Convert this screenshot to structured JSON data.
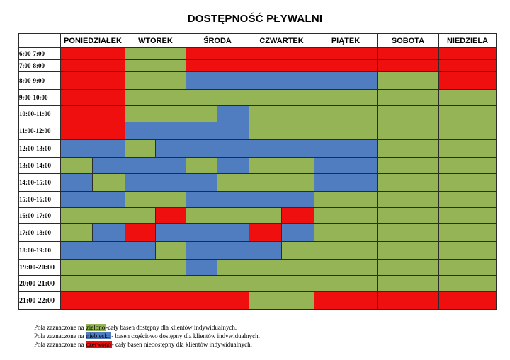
{
  "title": "DOSTĘPNOŚĆ PŁYWALNI",
  "colors": {
    "G": "#94b455",
    "B": "#4f7dbf",
    "R": "#ef0f0f"
  },
  "days": [
    "PONIEDZIAŁEK",
    "WTOREK",
    "ŚRODA",
    "CZWARTEK",
    "PIĄTEK",
    "SOBOTA",
    "NIEDZIELA"
  ],
  "rows": [
    {
      "time": "6:00-7:00",
      "cells": [
        [
          "R"
        ],
        [
          "G"
        ],
        [
          "R"
        ],
        [
          "R"
        ],
        [
          "R"
        ],
        [
          "R"
        ],
        [
          "R"
        ]
      ]
    },
    {
      "time": "7:00-8:00",
      "cells": [
        [
          "R"
        ],
        [
          "G"
        ],
        [
          "R"
        ],
        [
          "R"
        ],
        [
          "R"
        ],
        [
          "R"
        ],
        [
          "R"
        ]
      ]
    },
    {
      "time": "8:00-9:00",
      "cells": [
        [
          "R"
        ],
        [
          "G"
        ],
        [
          "B"
        ],
        [
          "B"
        ],
        [
          "B"
        ],
        [
          "G"
        ],
        [
          "R"
        ]
      ]
    },
    {
      "time": "9:00-10:00",
      "cells": [
        [
          "R"
        ],
        [
          "G"
        ],
        [
          "G"
        ],
        [
          "G"
        ],
        [
          "G"
        ],
        [
          "G"
        ],
        [
          "G"
        ]
      ]
    },
    {
      "time": "10:00-11:00",
      "cells": [
        [
          "R"
        ],
        [
          "G"
        ],
        [
          "G",
          "B"
        ],
        [
          "G"
        ],
        [
          "G"
        ],
        [
          "G"
        ],
        [
          "G"
        ]
      ]
    },
    {
      "time": "11:00-12:00",
      "cells": [
        [
          "R"
        ],
        [
          "B"
        ],
        [
          "B"
        ],
        [
          "G"
        ],
        [
          "G"
        ],
        [
          "G"
        ],
        [
          "G"
        ]
      ]
    },
    {
      "time": "12:00-13:00",
      "cells": [
        [
          "B"
        ],
        [
          "G",
          "B"
        ],
        [
          "B"
        ],
        [
          "B"
        ],
        [
          "B"
        ],
        [
          "G"
        ],
        [
          "G"
        ]
      ]
    },
    {
      "time": "13:00-14:00",
      "cells": [
        [
          "G",
          "B"
        ],
        [
          "B"
        ],
        [
          "G",
          "B"
        ],
        [
          "G"
        ],
        [
          "B"
        ],
        [
          "G"
        ],
        [
          "G"
        ]
      ]
    },
    {
      "time": "14:00-15:00",
      "cells": [
        [
          "B",
          "G"
        ],
        [
          "B"
        ],
        [
          "B",
          "G"
        ],
        [
          "G"
        ],
        [
          "B"
        ],
        [
          "G"
        ],
        [
          "G"
        ]
      ]
    },
    {
      "time": "15:00-16:00",
      "cells": [
        [
          "B"
        ],
        [
          "G"
        ],
        [
          "B"
        ],
        [
          "B"
        ],
        [
          "G"
        ],
        [
          "G"
        ],
        [
          "G"
        ]
      ]
    },
    {
      "time": "16:00-17:00",
      "cells": [
        [
          "G"
        ],
        [
          "G",
          "R"
        ],
        [
          "G"
        ],
        [
          "G",
          "R"
        ],
        [
          "G"
        ],
        [
          "G"
        ],
        [
          "G"
        ]
      ]
    },
    {
      "time": "17:00-18:00",
      "cells": [
        [
          "G",
          "B"
        ],
        [
          "R",
          "B"
        ],
        [
          "B"
        ],
        [
          "R",
          "B"
        ],
        [
          "G"
        ],
        [
          "G"
        ],
        [
          "G"
        ]
      ]
    },
    {
      "time": "18:00-19:00",
      "cells": [
        [
          "B"
        ],
        [
          "B",
          "G"
        ],
        [
          "B"
        ],
        [
          "B",
          "G"
        ],
        [
          "G"
        ],
        [
          "G"
        ],
        [
          "G"
        ]
      ]
    },
    {
      "time": "19:00-20:00",
      "cells": [
        [
          "G"
        ],
        [
          "G"
        ],
        [
          "B",
          "G"
        ],
        [
          "G"
        ],
        [
          "G"
        ],
        [
          "G"
        ],
        [
          "G"
        ]
      ]
    },
    {
      "time": "20:00-21:00",
      "cells": [
        [
          "G"
        ],
        [
          "G"
        ],
        [
          "G"
        ],
        [
          "G"
        ],
        [
          "G"
        ],
        [
          "G"
        ],
        [
          "G"
        ]
      ]
    },
    {
      "time": "21:00-22:00",
      "cells": [
        [
          "R"
        ],
        [
          "R"
        ],
        [
          "R"
        ],
        [
          "G"
        ],
        [
          "R"
        ],
        [
          "R"
        ],
        [
          "R"
        ]
      ]
    }
  ],
  "legend": [
    {
      "prefix": "Pola zaznaczone na ",
      "word": "zielono",
      "suffix": "-cały basen dostępny dla klientów indywidualnych.",
      "color": "#94b455"
    },
    {
      "prefix": "Pola zaznaczone na ",
      "word": "niebiesko",
      "suffix": "- basen częściowo dostępny dla klientów indywidualnych.",
      "color": "#4f7dbf"
    },
    {
      "prefix": "Pola zaznaczone na ",
      "word": "czerwono",
      "suffix": "- cały basen niedostępny dla klientów indywidualnych.",
      "color": "#ef0f0f"
    }
  ]
}
